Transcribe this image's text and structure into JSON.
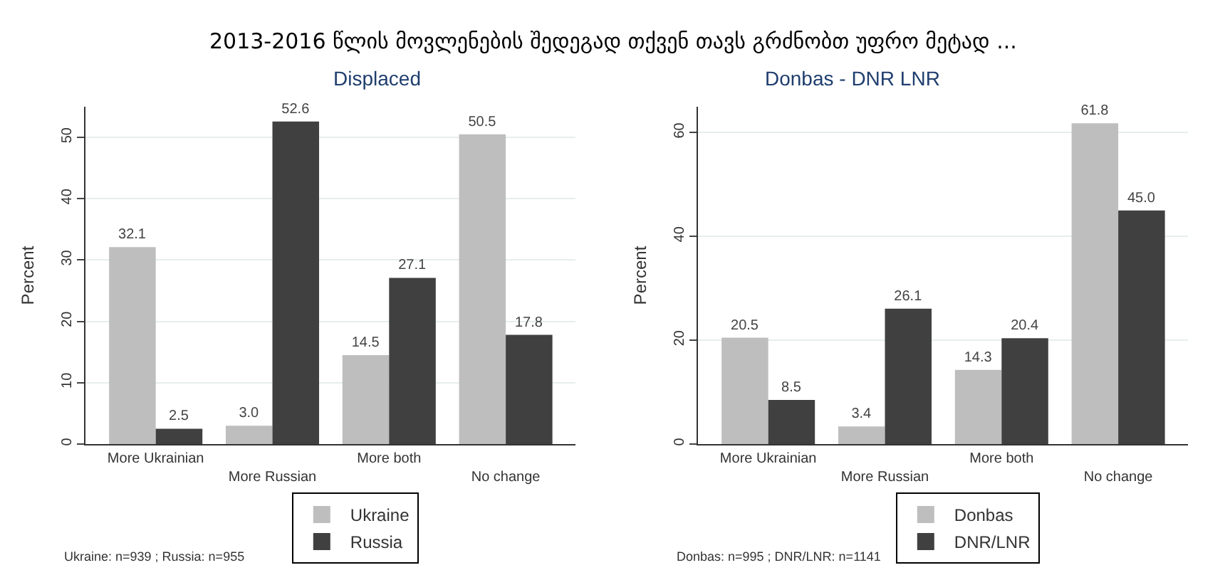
{
  "chart_data": [
    {
      "type": "bar",
      "title": "2013-2016 წლის მოვლენების შედეგად თქვენ თავს გრძნობთ უფრო მეტად ...",
      "subtitle": "Displaced",
      "ylabel": "Percent",
      "categories": [
        "More Ukrainian",
        "More Russian",
        "More both",
        "No change"
      ],
      "series": [
        {
          "name": "Ukraine",
          "color": "#bebebe",
          "values": [
            32.1,
            3.0,
            14.5,
            50.5
          ],
          "value_labels": [
            "32.1",
            "3.0",
            "14.5",
            "50.5"
          ]
        },
        {
          "name": "Russia",
          "color": "#404040",
          "values": [
            2.5,
            52.6,
            27.1,
            17.8
          ],
          "value_labels": [
            "2.5",
            "52.6",
            "27.1",
            "17.8"
          ]
        }
      ],
      "ylim": [
        0,
        55
      ],
      "yticks": [
        0,
        10,
        20,
        30,
        40,
        50
      ],
      "grid": "y",
      "legend": "bottom",
      "annotations": [
        "Ukraine: n=939 ; Russia: n=955"
      ]
    },
    {
      "type": "bar",
      "subtitle": "Donbas - DNR LNR",
      "ylabel": "Percent",
      "categories": [
        "More Ukrainian",
        "More Russian",
        "More both",
        "No change"
      ],
      "series": [
        {
          "name": "Donbas",
          "color": "#bebebe",
          "values": [
            20.5,
            3.4,
            14.3,
            61.8
          ],
          "value_labels": [
            "20.5",
            "3.4",
            "14.3",
            "61.8"
          ]
        },
        {
          "name": "DNR/LNR",
          "color": "#404040",
          "values": [
            8.5,
            26.1,
            20.4,
            45.0
          ],
          "value_labels": [
            "8.5",
            "26.1",
            "20.4",
            "45.0"
          ]
        }
      ],
      "ylim": [
        0,
        65
      ],
      "yticks": [
        0,
        20,
        40,
        60
      ],
      "grid": "y",
      "legend": "bottom",
      "annotations": [
        "Donbas: n=995 ; DNR/LNR: n=1141"
      ]
    }
  ]
}
